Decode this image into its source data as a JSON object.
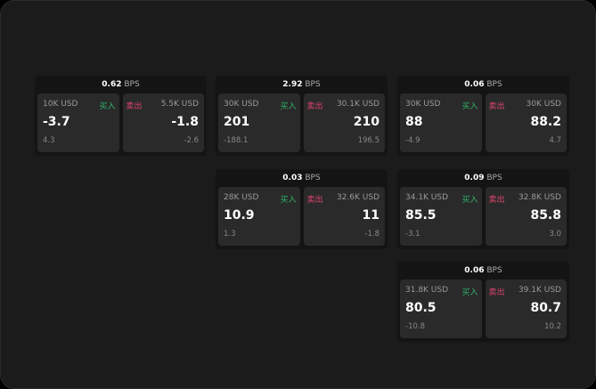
{
  "labels": {
    "buy": "买入",
    "sell": "卖出",
    "unit": "BPS"
  },
  "cards": [
    {
      "spread": "0.62",
      "buy": {
        "qty": "10K USD",
        "price": "-3.7",
        "change": "4.3"
      },
      "sell": {
        "qty": "5.5K USD",
        "price": "-1.8",
        "change": "-2.6"
      }
    },
    {
      "spread": "2.92",
      "buy": {
        "qty": "30K USD",
        "price": "201",
        "change": "-188.1"
      },
      "sell": {
        "qty": "30.1K USD",
        "price": "210",
        "change": "196.5"
      }
    },
    {
      "spread": "0.06",
      "buy": {
        "qty": "30K USD",
        "price": "88",
        "change": "-4.9"
      },
      "sell": {
        "qty": "30K USD",
        "price": "88.2",
        "change": "4.7"
      }
    },
    {
      "spread": "0.03",
      "buy": {
        "qty": "28K USD",
        "price": "10.9",
        "change": "1.3"
      },
      "sell": {
        "qty": "32.6K USD",
        "price": "11",
        "change": "-1.8"
      }
    },
    {
      "spread": "0.09",
      "buy": {
        "qty": "34.1K USD",
        "price": "85.5",
        "change": "-3.1"
      },
      "sell": {
        "qty": "32.8K USD",
        "price": "85.8",
        "change": "3.0"
      }
    },
    {
      "spread": "0.06",
      "buy": {
        "qty": "31.8K USD",
        "price": "80.5",
        "change": "-10.8"
      },
      "sell": {
        "qty": "39.1K USD",
        "price": "80.7",
        "change": "10.2"
      }
    }
  ],
  "colors": {
    "buy": "#2fb36a",
    "sell": "#e0456e"
  }
}
